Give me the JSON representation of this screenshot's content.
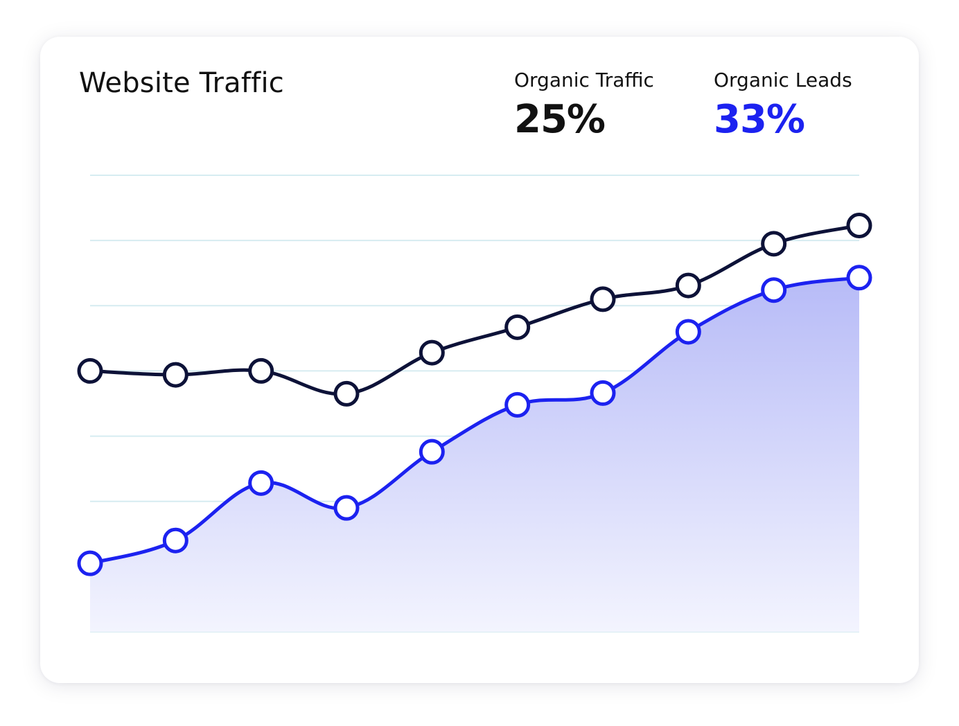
{
  "card": {
    "title": "Website Traffic"
  },
  "stats": [
    {
      "label": "Organic Traffic",
      "value": "25%",
      "color": "#111111"
    },
    {
      "label": "Organic Leads",
      "value": "33%",
      "color": "#1c22f0"
    }
  ],
  "colors": {
    "grid": "#d6ecf1",
    "traffic_line": "#0d1238",
    "leads_line": "#1c22f0",
    "leads_fill_top": "#b7bbf7",
    "leads_fill_bottom": "#f3f4fe"
  },
  "chart_data": {
    "type": "line",
    "title": "Website Traffic",
    "xlabel": "",
    "ylabel": "",
    "grid": true,
    "ylim": [
      0,
      7
    ],
    "x": [
      1,
      2,
      3,
      4,
      5,
      6,
      7,
      8,
      9,
      10
    ],
    "series": [
      {
        "name": "Organic Traffic",
        "color": "#0d1238",
        "fill": false,
        "values": [
          4.0,
          3.94,
          4.0,
          3.65,
          4.28,
          4.67,
          5.1,
          5.31,
          5.95,
          6.23
        ]
      },
      {
        "name": "Organic Leads",
        "color": "#1c22f0",
        "fill": true,
        "values": [
          1.05,
          1.4,
          2.28,
          1.9,
          2.76,
          3.48,
          3.66,
          4.6,
          5.24,
          5.43
        ]
      }
    ]
  }
}
